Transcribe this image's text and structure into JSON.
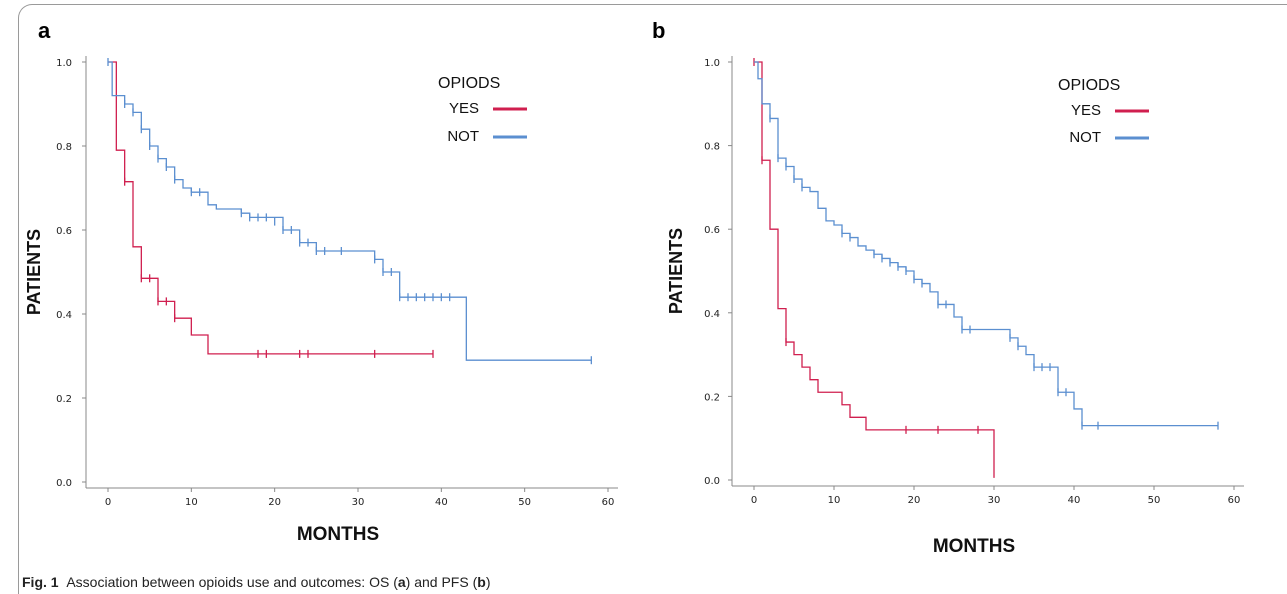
{
  "caption": {
    "fig_label": "Fig. 1",
    "parts": [
      {
        "text": "Association between opioids use and outcomes: OS (",
        "bold": false
      },
      {
        "text": "a",
        "bold": true
      },
      {
        "text": ") and PFS (",
        "bold": false
      },
      {
        "text": "b",
        "bold": true
      },
      {
        "text": ")",
        "bold": false
      }
    ]
  },
  "chart_data": [
    {
      "type": "line",
      "panel": "a",
      "xlabel": "MONTHS",
      "ylabel": "PATIENTS",
      "xlim": [
        0,
        60
      ],
      "ylim": [
        0,
        1.0
      ],
      "x_ticks": [
        0,
        10,
        20,
        30,
        40,
        50,
        60
      ],
      "y_ticks": [
        0.0,
        0.2,
        0.4,
        0.6,
        0.8,
        1.0
      ],
      "grid": false,
      "legend": {
        "title": "OPIODS",
        "position": "top-right"
      },
      "series": [
        {
          "name": "YES",
          "color": "#d01f4f",
          "steps": [
            [
              0,
              1.0
            ],
            [
              1,
              0.79
            ],
            [
              2,
              0.715
            ],
            [
              3,
              0.56
            ],
            [
              4,
              0.485
            ],
            [
              6,
              0.43
            ],
            [
              8,
              0.39
            ],
            [
              10,
              0.35
            ],
            [
              12,
              0.305
            ],
            [
              39,
              0.305
            ]
          ],
          "censored": [
            [
              2,
              0.715
            ],
            [
              4,
              0.485
            ],
            [
              5,
              0.485
            ],
            [
              6,
              0.43
            ],
            [
              7,
              0.43
            ],
            [
              8,
              0.39
            ],
            [
              18,
              0.305
            ],
            [
              19,
              0.305
            ],
            [
              23,
              0.305
            ],
            [
              24,
              0.305
            ],
            [
              32,
              0.305
            ],
            [
              39,
              0.305
            ]
          ]
        },
        {
          "name": "NOT",
          "color": "#5b8fd0",
          "steps": [
            [
              0,
              1.0
            ],
            [
              0.5,
              0.92
            ],
            [
              2,
              0.9
            ],
            [
              3,
              0.88
            ],
            [
              4,
              0.84
            ],
            [
              5,
              0.8
            ],
            [
              6,
              0.77
            ],
            [
              7,
              0.75
            ],
            [
              8,
              0.72
            ],
            [
              9,
              0.7
            ],
            [
              10,
              0.69
            ],
            [
              12,
              0.66
            ],
            [
              13,
              0.65
            ],
            [
              16,
              0.64
            ],
            [
              17,
              0.63
            ],
            [
              21,
              0.6
            ],
            [
              23,
              0.57
            ],
            [
              25,
              0.55
            ],
            [
              32,
              0.53
            ],
            [
              33,
              0.5
            ],
            [
              35,
              0.44
            ],
            [
              43,
              0.29
            ],
            [
              58,
              0.29
            ]
          ],
          "censored": [
            [
              0,
              1.0
            ],
            [
              2,
              0.9
            ],
            [
              3,
              0.88
            ],
            [
              4,
              0.84
            ],
            [
              5,
              0.8
            ],
            [
              6,
              0.77
            ],
            [
              7,
              0.75
            ],
            [
              8,
              0.72
            ],
            [
              10,
              0.69
            ],
            [
              11,
              0.69
            ],
            [
              16,
              0.64
            ],
            [
              17,
              0.63
            ],
            [
              18,
              0.63
            ],
            [
              19,
              0.63
            ],
            [
              20,
              0.62
            ],
            [
              21,
              0.6
            ],
            [
              22,
              0.6
            ],
            [
              23,
              0.57
            ],
            [
              24,
              0.57
            ],
            [
              25,
              0.55
            ],
            [
              26,
              0.55
            ],
            [
              28,
              0.55
            ],
            [
              32,
              0.53
            ],
            [
              33,
              0.5
            ],
            [
              34,
              0.5
            ],
            [
              35,
              0.44
            ],
            [
              36,
              0.44
            ],
            [
              37,
              0.44
            ],
            [
              38,
              0.44
            ],
            [
              39,
              0.44
            ],
            [
              40,
              0.44
            ],
            [
              41,
              0.44
            ],
            [
              58,
              0.29
            ]
          ]
        }
      ]
    },
    {
      "type": "line",
      "panel": "b",
      "xlabel": "MONTHS",
      "ylabel": "PATIENTS",
      "xlim": [
        0,
        60
      ],
      "ylim": [
        0,
        1.0
      ],
      "x_ticks": [
        0,
        10,
        20,
        30,
        40,
        50,
        60
      ],
      "y_ticks": [
        0.0,
        0.2,
        0.4,
        0.6,
        0.8,
        1.0
      ],
      "grid": false,
      "legend": {
        "title": "OPIODS",
        "position": "top-right"
      },
      "series": [
        {
          "name": "YES",
          "color": "#d01f4f",
          "steps": [
            [
              0,
              1.0
            ],
            [
              1,
              0.765
            ],
            [
              2,
              0.6
            ],
            [
              3,
              0.41
            ],
            [
              4,
              0.33
            ],
            [
              5,
              0.3
            ],
            [
              6,
              0.27
            ],
            [
              7,
              0.24
            ],
            [
              8,
              0.21
            ],
            [
              11,
              0.18
            ],
            [
              12,
              0.15
            ],
            [
              14,
              0.12
            ],
            [
              30,
              0.12
            ],
            [
              30,
              0.005
            ]
          ],
          "censored": [
            [
              0,
              1.0
            ],
            [
              1,
              0.765
            ],
            [
              4,
              0.33
            ],
            [
              19,
              0.12
            ],
            [
              23,
              0.12
            ],
            [
              28,
              0.12
            ]
          ]
        },
        {
          "name": "NOT",
          "color": "#5b8fd0",
          "steps": [
            [
              0,
              1.0
            ],
            [
              0.5,
              0.96
            ],
            [
              1,
              0.9
            ],
            [
              2,
              0.865
            ],
            [
              3,
              0.77
            ],
            [
              4,
              0.75
            ],
            [
              5,
              0.72
            ],
            [
              6,
              0.7
            ],
            [
              7,
              0.69
            ],
            [
              8,
              0.65
            ],
            [
              9,
              0.62
            ],
            [
              10,
              0.61
            ],
            [
              11,
              0.59
            ],
            [
              12,
              0.58
            ],
            [
              13,
              0.56
            ],
            [
              14,
              0.55
            ],
            [
              15,
              0.54
            ],
            [
              16,
              0.53
            ],
            [
              17,
              0.52
            ],
            [
              18,
              0.51
            ],
            [
              19,
              0.5
            ],
            [
              20,
              0.48
            ],
            [
              21,
              0.47
            ],
            [
              22,
              0.45
            ],
            [
              23,
              0.42
            ],
            [
              25,
              0.39
            ],
            [
              26,
              0.36
            ],
            [
              32,
              0.34
            ],
            [
              33,
              0.32
            ],
            [
              34,
              0.3
            ],
            [
              35,
              0.27
            ],
            [
              38,
              0.21
            ],
            [
              40,
              0.17
            ],
            [
              41,
              0.13
            ],
            [
              58,
              0.13
            ]
          ],
          "censored": [
            [
              2,
              0.865
            ],
            [
              3,
              0.77
            ],
            [
              4,
              0.75
            ],
            [
              5,
              0.72
            ],
            [
              6,
              0.7
            ],
            [
              11,
              0.59
            ],
            [
              12,
              0.58
            ],
            [
              15,
              0.54
            ],
            [
              16,
              0.53
            ],
            [
              17,
              0.52
            ],
            [
              18,
              0.51
            ],
            [
              19,
              0.5
            ],
            [
              20,
              0.48
            ],
            [
              21,
              0.47
            ],
            [
              23,
              0.42
            ],
            [
              24,
              0.42
            ],
            [
              26,
              0.36
            ],
            [
              27,
              0.36
            ],
            [
              32,
              0.34
            ],
            [
              33,
              0.32
            ],
            [
              35,
              0.27
            ],
            [
              36,
              0.27
            ],
            [
              37,
              0.27
            ],
            [
              38,
              0.21
            ],
            [
              39,
              0.21
            ],
            [
              41,
              0.13
            ],
            [
              43,
              0.13
            ],
            [
              58,
              0.13
            ]
          ]
        }
      ]
    }
  ]
}
